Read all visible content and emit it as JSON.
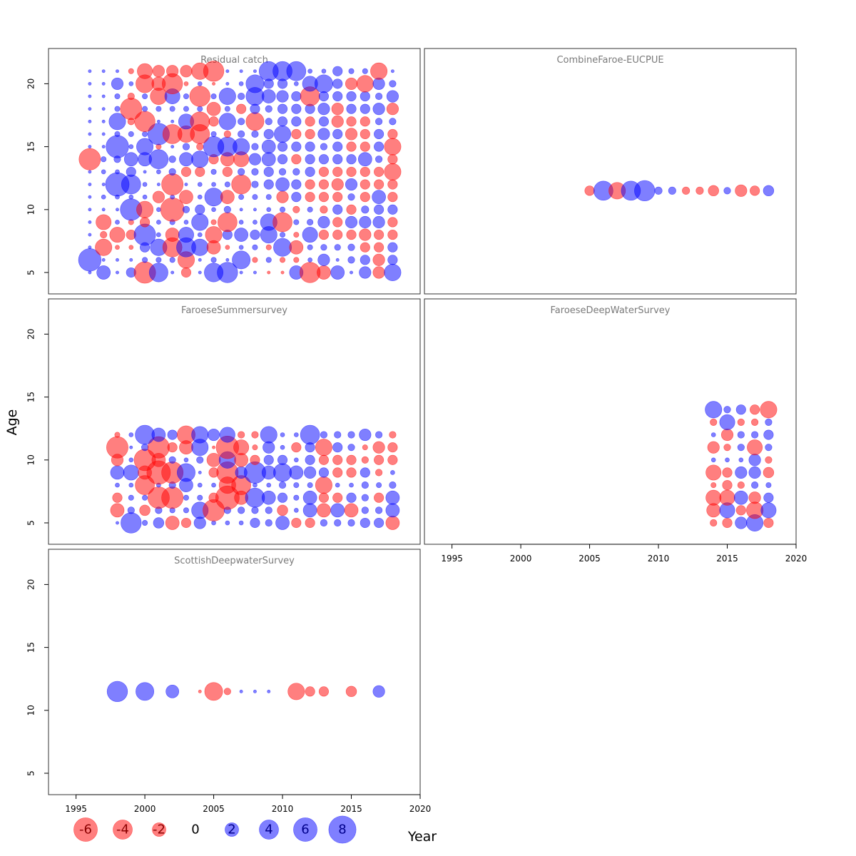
{
  "chart_data": {
    "type": "scatter",
    "subtype": "bubble",
    "xlabel": "Year",
    "ylabel": "Age",
    "xlim": [
      1993,
      2020
    ],
    "ylim": [
      3.3,
      22.8
    ],
    "x_ticks": [
      "1995",
      "2000",
      "2005",
      "2010",
      "2015",
      "2020"
    ],
    "y_ticks": [
      "5",
      "10",
      "15",
      "20"
    ],
    "colors": {
      "positive": "#0000ff",
      "negative": "#ff0000",
      "frame": "#333333",
      "title": "#7a7a7a"
    },
    "legend": {
      "position": "bottom",
      "items": [
        {
          "label": "-6",
          "value": -6
        },
        {
          "label": "-4",
          "value": -4
        },
        {
          "label": "-2",
          "value": -2
        },
        {
          "label": "0",
          "value": 0
        },
        {
          "label": "2",
          "value": 2
        },
        {
          "label": "4",
          "value": 4
        },
        {
          "label": "6",
          "value": 6
        },
        {
          "label": "8",
          "value": 8
        }
      ]
    },
    "panels": [
      {
        "title": "Residual catch",
        "years": [
          1996,
          1997,
          1998,
          1999,
          2000,
          2001,
          2002,
          2003,
          2004,
          2005,
          2006,
          2007,
          2008,
          2009,
          2010,
          2011,
          2012,
          2013,
          2014,
          2015,
          2016,
          2017,
          2018
        ],
        "ages": [
          5,
          6,
          7,
          8,
          9,
          10,
          11,
          12,
          13,
          14,
          15,
          16,
          17,
          18,
          19,
          20,
          21
        ],
        "values": {
          "5": [
            0.1,
            2,
            0.1,
            1,
            -5,
            3.8,
            0.1,
            -1,
            0.1,
            3.8,
            4.5,
            0.1,
            0.1,
            -0.1,
            -0.1,
            2,
            -4.5,
            -2,
            2,
            0.1,
            1.5,
            -1.5,
            3
          ],
          "6": [
            5.5,
            0.1,
            0.1,
            0.1,
            0.3,
            0.3,
            0.3,
            -3,
            0.1,
            0.3,
            0.1,
            3.5,
            -0.3,
            0.3,
            -0.3,
            -0.3,
            0.2,
            1.5,
            0.1,
            0.5,
            1,
            -1.5,
            1
          ],
          "7": [
            0.1,
            -3,
            -0.2,
            -0.2,
            1,
            3,
            -4,
            4,
            3,
            -2,
            -0.2,
            0.2,
            0.3,
            -0.3,
            3.5,
            -2,
            0.3,
            0.4,
            0.4,
            0.5,
            -1,
            -1,
            1
          ],
          "8": [
            0.1,
            -0.5,
            -2.5,
            -1,
            5,
            0.2,
            -2,
            2.5,
            0.2,
            -3,
            1,
            2,
            1,
            3,
            0.3,
            -0.3,
            2.5,
            -1,
            -1,
            -1,
            -1.5,
            -1,
            -1
          ],
          "9": [
            0.1,
            -2.5,
            0.2,
            -0.3,
            -1,
            0.2,
            0.3,
            0.2,
            3,
            -0.3,
            -4,
            0.2,
            0.2,
            3,
            -4,
            0.3,
            0.4,
            1.5,
            -1,
            1.5,
            1.5,
            1.5,
            -1
          ],
          "10": [
            0.1,
            0.1,
            0.1,
            5,
            -3,
            0.2,
            -6,
            0.5,
            1,
            0.2,
            0.5,
            0.1,
            0.1,
            0.2,
            0.3,
            -0.5,
            0.3,
            -0.6,
            1,
            -1,
            0.6,
            1,
            1
          ],
          "11": [
            0.1,
            0.2,
            0.2,
            0.2,
            0.2,
            -1.5,
            0.2,
            -2,
            0.2,
            3.5,
            -2,
            0.3,
            0.3,
            0.3,
            -1.5,
            1,
            -1,
            -1,
            -1,
            0.5,
            -1,
            2,
            -1
          ],
          "12": [
            0.1,
            0.1,
            6,
            4,
            0.2,
            0.1,
            -5,
            0.1,
            0.2,
            0.2,
            0.3,
            -4,
            0.5,
            1,
            2,
            1,
            -1,
            -1,
            -1.5,
            1.5,
            -1,
            -1,
            -1
          ],
          "13": [
            0.1,
            0.2,
            0.2,
            1,
            0.1,
            0.2,
            0.5,
            -1,
            -1,
            0.3,
            -1,
            0.5,
            0.5,
            1,
            0.5,
            0.5,
            1,
            -1,
            -1,
            -1,
            -1,
            -1,
            -3
          ],
          "14": [
            -5,
            0.3,
            0.5,
            2,
            2,
            4,
            0.5,
            2,
            3,
            -1,
            -2,
            -2.5,
            1.5,
            2,
            1,
            -1,
            1,
            1,
            1,
            1,
            2,
            0.5,
            -1
          ],
          "15": [
            0.1,
            0.1,
            5.5,
            0.2,
            3,
            -0.3,
            0.1,
            0.5,
            -0.5,
            4.5,
            4,
            3,
            0.5,
            2,
            1,
            1,
            1,
            0.5,
            1,
            -1,
            -1,
            1,
            -3
          ],
          "16": [
            0.1,
            0.1,
            0.3,
            0.3,
            0.3,
            5,
            -4,
            -3,
            -4,
            0.3,
            -0.5,
            0.5,
            0.5,
            1,
            3,
            -1,
            -1,
            1.5,
            1,
            -1.5,
            -1,
            1,
            -1
          ],
          "17": [
            0.1,
            0.1,
            3,
            -0.5,
            -4.5,
            0.1,
            0.1,
            2.5,
            -4,
            -1,
            3,
            0.5,
            -3.5,
            0.5,
            1,
            1,
            -1,
            1,
            -1.5,
            -1,
            -1,
            0.5,
            0.5
          ],
          "18": [
            0.1,
            0.1,
            0.3,
            -5,
            0.3,
            0.3,
            0.3,
            0.3,
            0.3,
            -2,
            0.3,
            -1,
            1,
            0.5,
            1,
            1,
            1,
            1.5,
            -1.5,
            1,
            1,
            1.5,
            -1.5
          ],
          "19": [
            0.1,
            0.1,
            0.3,
            -0.5,
            0.3,
            -3,
            2.5,
            0.3,
            -4.5,
            0.3,
            3,
            0.5,
            3.5,
            2,
            1.5,
            1,
            -4,
            1,
            1,
            1,
            1,
            0.5,
            1.5
          ],
          "20": [
            0.1,
            0.1,
            1.5,
            0.2,
            -3.5,
            -2,
            -4.5,
            -0.2,
            0.2,
            -0.1,
            0.1,
            0.2,
            3.5,
            1,
            1,
            0.2,
            2.5,
            3.5,
            1,
            -1.5,
            -3,
            1.5,
            0.5
          ],
          "21": [
            0.1,
            0.1,
            0.1,
            -0.3,
            -2.5,
            -1.5,
            -1.5,
            -1.5,
            -3,
            -4.5,
            0.1,
            0.1,
            0.1,
            4,
            4,
            4,
            0.2,
            0.2,
            1,
            0.3,
            0.3,
            -3,
            0.1
          ]
        }
      },
      {
        "title": "CombineFaroe-EUCPUE",
        "years": [
          2005,
          2006,
          2007,
          2008,
          2009,
          2010,
          2011,
          2012,
          2013,
          2014,
          2015,
          2016,
          2017,
          2018
        ],
        "ages": [
          11.5
        ],
        "values": {
          "11.5": [
            -1,
            4,
            -3,
            4,
            4.5,
            0.6,
            0.6,
            -0.6,
            -0.6,
            -1.2,
            0.5,
            -1.5,
            -1,
            1.2
          ]
        }
      },
      {
        "title": "FaroeseSummersurvey",
        "years": [
          1998,
          1999,
          2000,
          2001,
          2002,
          2003,
          2004,
          2005,
          2006,
          2007,
          2008,
          2009,
          2010,
          2011,
          2012,
          2013,
          2014,
          2015,
          2016,
          2017,
          2018
        ],
        "ages": [
          5,
          6,
          7,
          8,
          9,
          10,
          11,
          12
        ],
        "values": {
          "5": [
            0.1,
            4.5,
            0.3,
            1.2,
            -2,
            -1,
            1.5,
            0.2,
            0.2,
            0.2,
            1,
            0.5,
            2,
            -1,
            -1,
            0.5,
            0.5,
            0.5,
            1,
            1,
            -2
          ],
          "6": [
            -2,
            0.5,
            -1.2,
            0.5,
            0.3,
            0.3,
            3,
            -5,
            0.5,
            0.5,
            0.5,
            0.5,
            -1.2,
            0.2,
            2,
            -2,
            2,
            -2,
            0.5,
            0.5,
            2
          ],
          "7": [
            -1,
            0.3,
            0.3,
            -5,
            -5,
            0.3,
            0.3,
            -1,
            -6,
            -2,
            4,
            2,
            1,
            0.3,
            2,
            -1,
            -1,
            1,
            0.5,
            -1,
            2
          ],
          "8": [
            0.2,
            0.2,
            -4,
            0.2,
            0.5,
            2,
            0.2,
            0.2,
            -3,
            -4,
            0.2,
            0.2,
            0.5,
            0.3,
            0.3,
            -3,
            0.2,
            0.2,
            0.5,
            0.3,
            0.5
          ],
          "9": [
            2,
            2.5,
            -2,
            -6,
            -5,
            3.5,
            0.1,
            -1,
            -5,
            1.5,
            5,
            2,
            3.5,
            2,
            1.5,
            1,
            -1,
            -1,
            1,
            -0.5,
            0.2
          ],
          "10": [
            -1.5,
            0.2,
            -5,
            -2,
            0.5,
            0.2,
            0.5,
            -2,
            3,
            -2,
            -1,
            1,
            1,
            0.2,
            1,
            -1,
            -1,
            -1,
            -0.5,
            -1,
            -1
          ],
          "11": [
            -5,
            0.1,
            0.5,
            -5,
            -1,
            -2,
            3,
            -0.1,
            -5.5,
            -2.5,
            -0.3,
            1.5,
            0.2,
            -1,
            1,
            -3,
            1,
            0.5,
            -0.3,
            -1.5,
            -1
          ],
          "12": [
            -0.3,
            0.2,
            4,
            2,
            1,
            -3.5,
            3,
            1.5,
            2.5,
            -0.5,
            -0.5,
            3,
            0.2,
            0.2,
            4,
            0.5,
            0.5,
            0.5,
            1.5,
            0.5,
            -0.5
          ]
        }
      },
      {
        "title": "FaroeseDeepWaterSurvey",
        "years": [
          2014,
          2015,
          2016,
          2017,
          2018
        ],
        "ages": [
          5,
          6,
          7,
          8,
          9,
          10,
          11,
          12,
          13,
          14
        ],
        "values": {
          "5": [
            -0.5,
            -1,
            1.5,
            3,
            -1
          ],
          "6": [
            -2,
            2.5,
            -1,
            -3,
            2.5
          ],
          "7": [
            -2.5,
            -2.5,
            2,
            -1.5,
            1
          ],
          "8": [
            -0.3,
            -1,
            -0.5,
            0.5,
            0.3
          ],
          "9": [
            -2.5,
            -1,
            1.5,
            1.5,
            -1.2
          ],
          "10": [
            0.2,
            0.2,
            0.2,
            1.5,
            -0.5
          ],
          "11": [
            -1.5,
            -0.5,
            0.5,
            -2.5,
            0.5
          ],
          "12": [
            0.2,
            -1.5,
            0.5,
            0.5,
            1
          ],
          "13": [
            -0.5,
            2.5,
            -0.5,
            -0.5,
            0.5
          ],
          "14": [
            3,
            0.5,
            1,
            -1,
            -3
          ]
        }
      },
      {
        "title": "ScottishDeepwaterSurvey",
        "years": [
          1998,
          2000,
          2002,
          2004,
          2005,
          2006,
          2007,
          2008,
          2009,
          2011,
          2012,
          2013,
          2015,
          2017
        ],
        "ages": [
          11.5
        ],
        "values": {
          "11.5": [
            4.5,
            3.5,
            1.8,
            -0.1,
            -3.5,
            -0.5,
            0.1,
            0.1,
            0.1,
            -3,
            -1,
            -1,
            -1.2,
            1.5
          ]
        }
      }
    ]
  }
}
